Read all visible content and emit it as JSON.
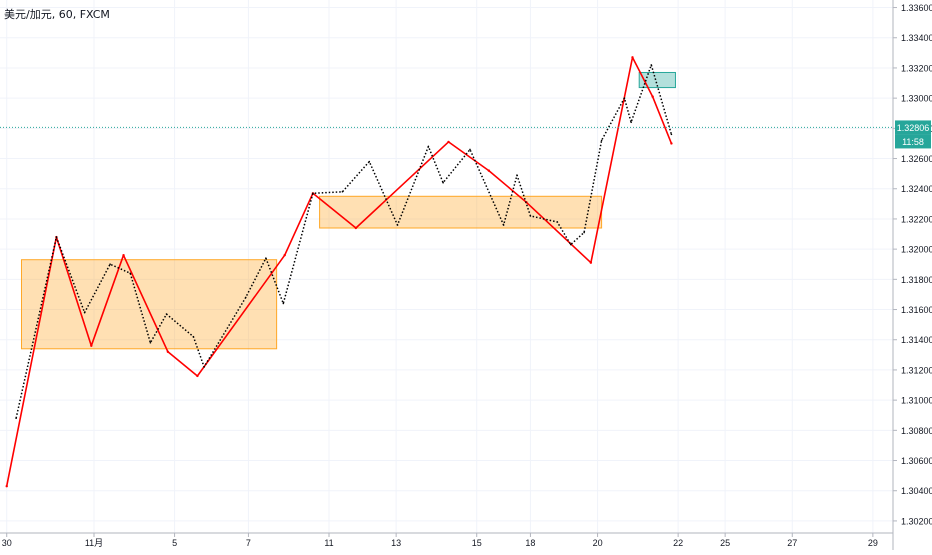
{
  "header": {
    "title": "美元/加元, 60, FXCM"
  },
  "chart_data": {
    "type": "line",
    "title": "美元/加元, 60, FXCM",
    "ylim": [
      1.3012,
      1.3365
    ],
    "y_ticks": [
      "1.33600",
      "1.33400",
      "1.33200",
      "1.33000",
      "1.32800",
      "1.32600",
      "1.32400",
      "1.32200",
      "1.32000",
      "1.31800",
      "1.31600",
      "1.31400",
      "1.31200",
      "1.31000",
      "1.30800",
      "1.30600",
      "1.30400",
      "1.30200"
    ],
    "x_ticks": [
      {
        "label": "30",
        "x": 0.5
      },
      {
        "label": "11月",
        "x": 7
      },
      {
        "label": "5",
        "x": 13
      },
      {
        "label": "7",
        "x": 18.5
      },
      {
        "label": "11",
        "x": 24.5
      },
      {
        "label": "13",
        "x": 29.5
      },
      {
        "label": "15",
        "x": 35.5
      },
      {
        "label": "18",
        "x": 39.5
      },
      {
        "label": "20",
        "x": 44.5
      },
      {
        "label": "22",
        "x": 50.5
      },
      {
        "label": "25",
        "x": 54
      },
      {
        "label": "27",
        "x": 59
      },
      {
        "label": "29",
        "x": 65
      }
    ],
    "grid": true,
    "current_price": {
      "value": "1.32806",
      "countdown": "11:58",
      "y": 1.32806
    },
    "series": [
      {
        "color": "#ff0000",
        "style": "solid",
        "points": [
          [
            0.5,
            1.3043
          ],
          [
            4.2,
            1.3208
          ],
          [
            6.8,
            1.3136
          ],
          [
            9.2,
            1.3196
          ],
          [
            12.5,
            1.3132
          ],
          [
            14.7,
            1.3116
          ],
          [
            21.2,
            1.3196
          ],
          [
            23.3,
            1.3237
          ],
          [
            26.5,
            1.3214
          ],
          [
            33.4,
            1.3271
          ],
          [
            36.4,
            1.3252
          ],
          [
            39.2,
            1.3231
          ],
          [
            44,
            1.3191
          ],
          [
            47.1,
            1.3327
          ],
          [
            48.6,
            1.3301
          ],
          [
            50.0,
            1.327
          ]
        ]
      },
      {
        "color": "#000000",
        "style": "dotted",
        "points": [
          [
            1.2,
            1.3088
          ],
          [
            4.2,
            1.3208
          ],
          [
            6.3,
            1.3158
          ],
          [
            8.2,
            1.319
          ],
          [
            9.7,
            1.3184
          ],
          [
            11.2,
            1.3138
          ],
          [
            12.4,
            1.3157
          ],
          [
            14.4,
            1.3142
          ],
          [
            15.2,
            1.3122
          ],
          [
            18.3,
            1.3168
          ],
          [
            19.8,
            1.3194
          ],
          [
            21.1,
            1.3164
          ],
          [
            23.3,
            1.3237
          ],
          [
            25.5,
            1.3238
          ],
          [
            27.5,
            1.3258
          ],
          [
            29.6,
            1.3216
          ],
          [
            31.9,
            1.3268
          ],
          [
            33.0,
            1.3244
          ],
          [
            35.0,
            1.3266
          ],
          [
            37.5,
            1.3216
          ],
          [
            38.5,
            1.3249
          ],
          [
            39.5,
            1.3222
          ],
          [
            41.5,
            1.3218
          ],
          [
            42.5,
            1.3203
          ],
          [
            43.5,
            1.3211
          ],
          [
            44.8,
            1.3272
          ],
          [
            46.5,
            1.33
          ],
          [
            47.0,
            1.3284
          ],
          [
            48.5,
            1.3322
          ],
          [
            50.0,
            1.3276
          ]
        ]
      }
    ],
    "ranges": [
      {
        "x": [
          1.6,
          20.6
        ],
        "y": [
          1.3134,
          1.3193
        ],
        "color": "#ffa726"
      },
      {
        "x": [
          23.8,
          44.8
        ],
        "y": [
          1.3214,
          1.3235
        ],
        "color": "#ffa726"
      },
      {
        "x": [
          47.6,
          50.3
        ],
        "y": [
          1.3307,
          1.3317
        ],
        "color": "#26a69a"
      }
    ]
  }
}
